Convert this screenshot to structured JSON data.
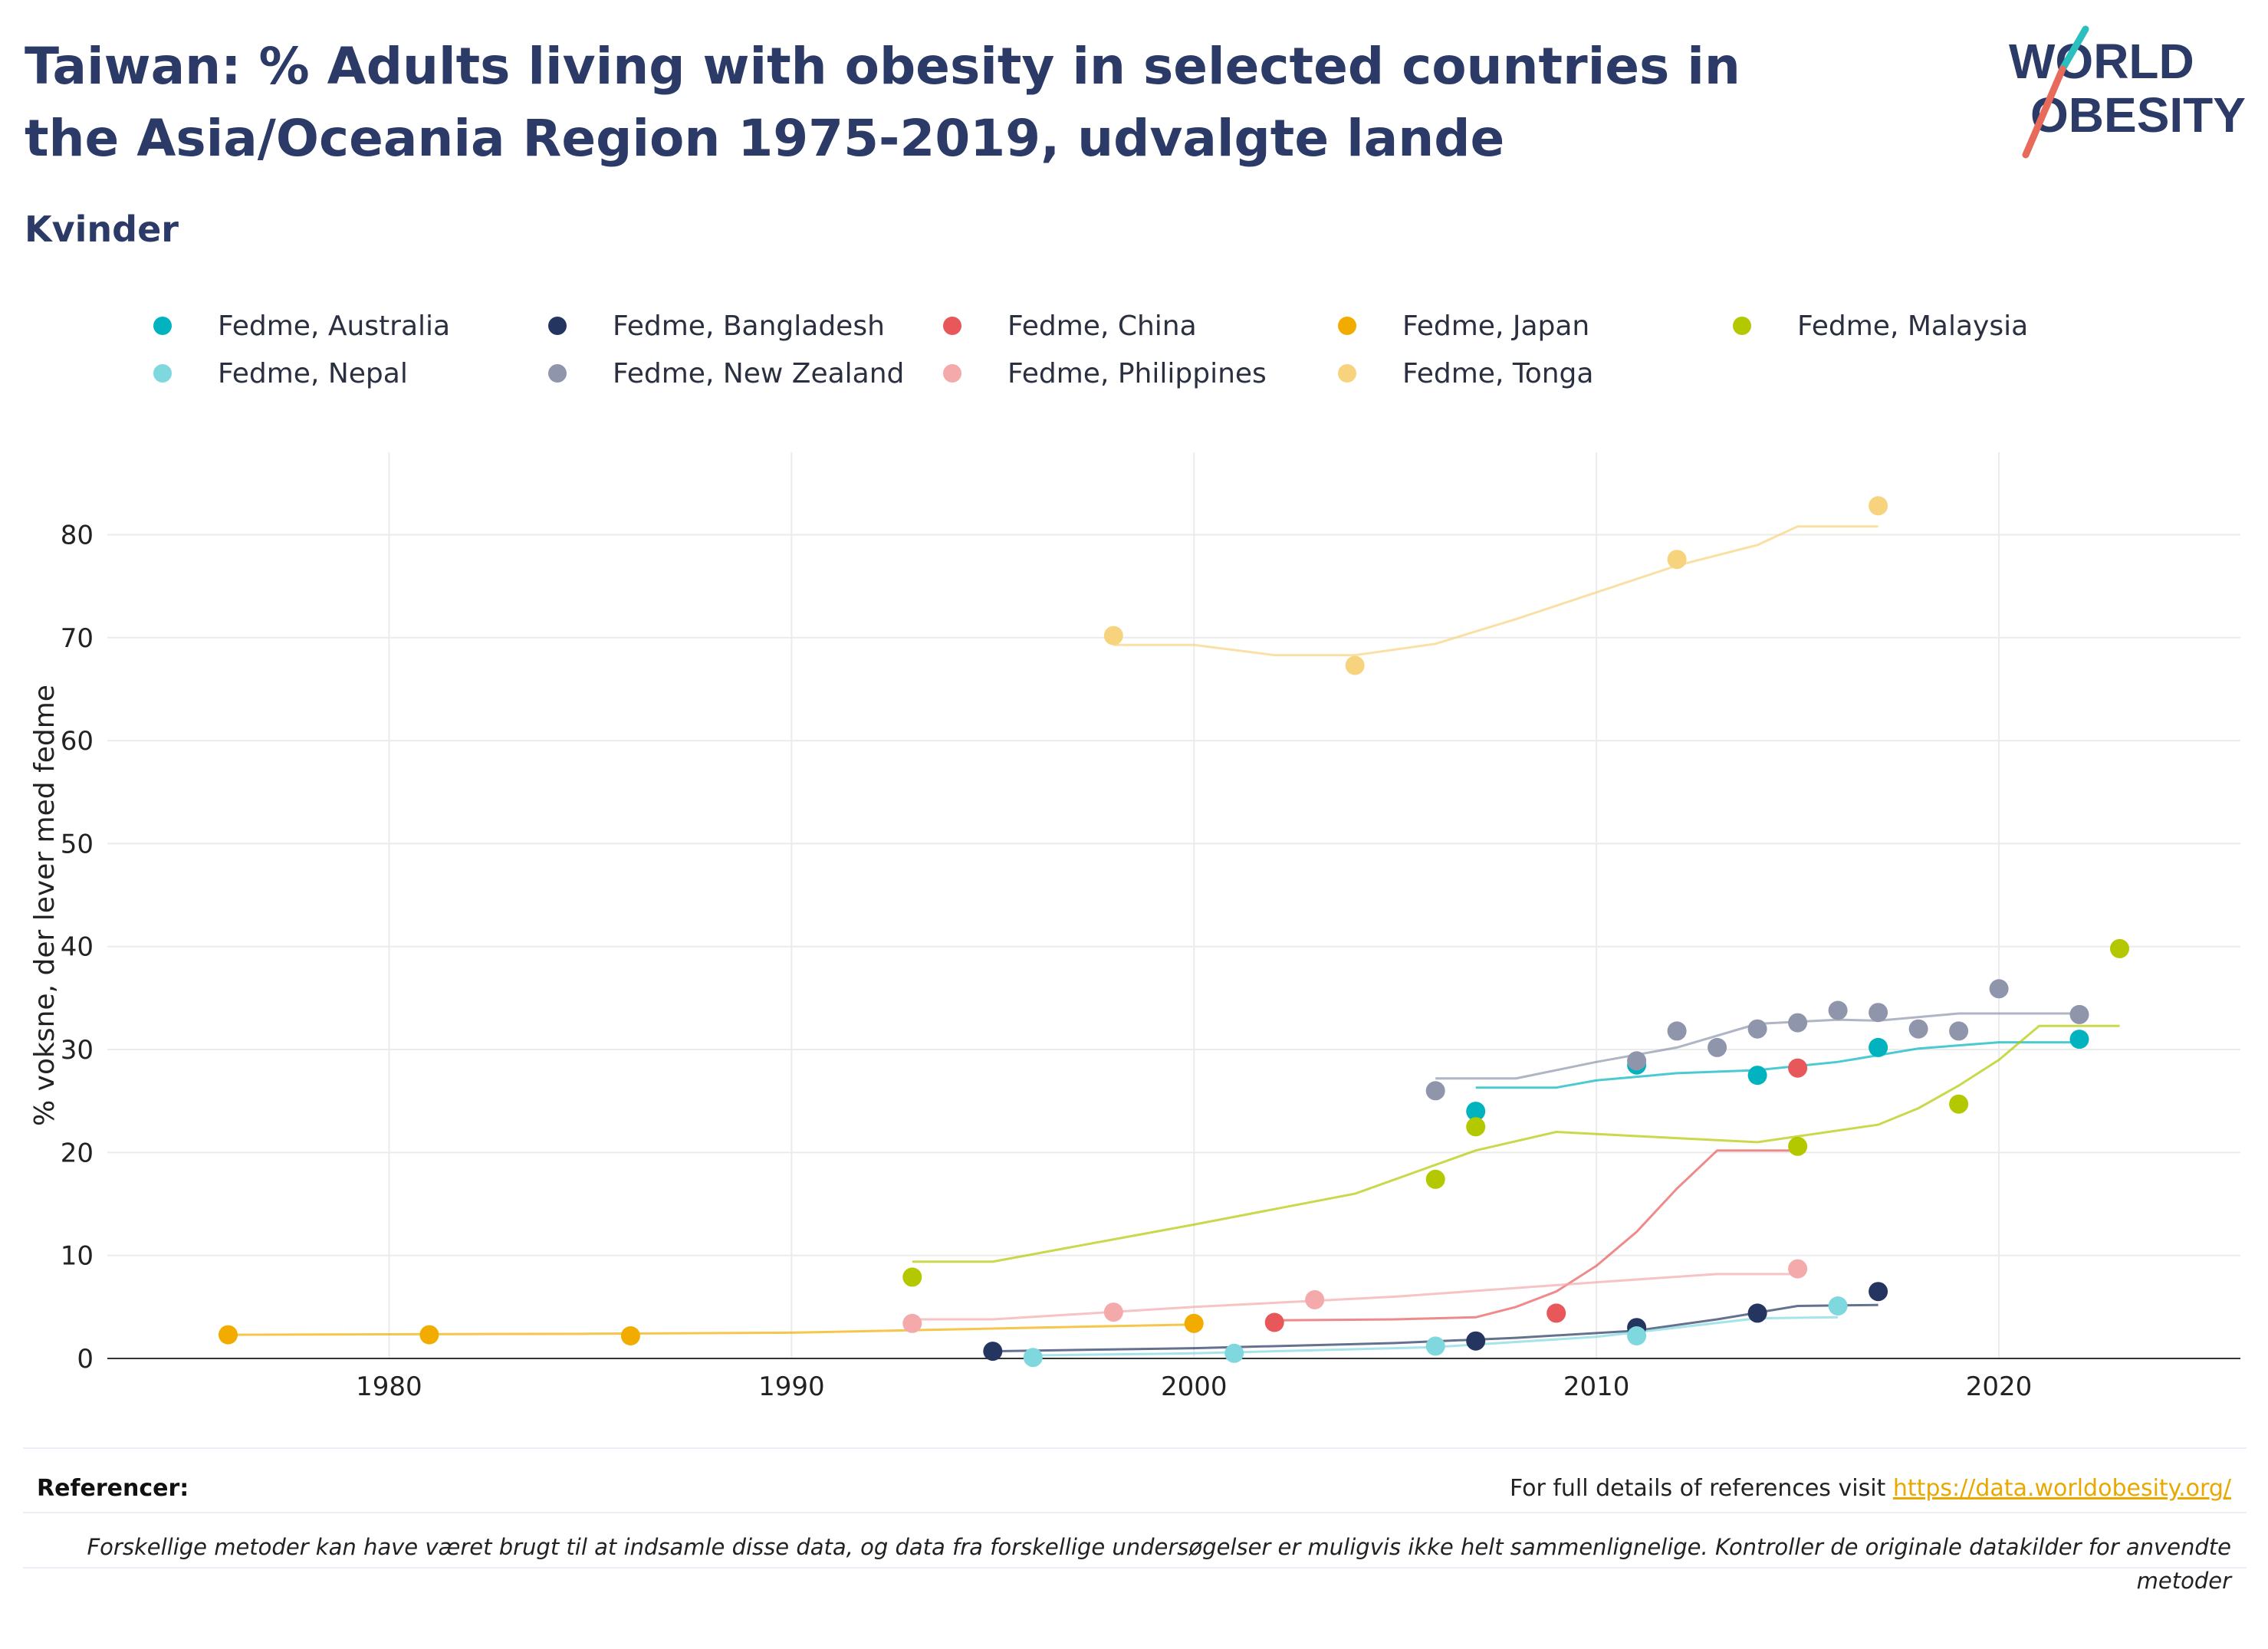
{
  "header": {
    "title": "Taiwan: % Adults living with obesity in selected countries in the Asia/Oceania Region 1975-2019, udvalgte lande",
    "subtitle": "Kvinder",
    "logo_line1": "WORLD",
    "logo_line2": "OBESITY"
  },
  "legend": [
    {
      "label": "Fedme, Australia",
      "color": "#00b3bf"
    },
    {
      "label": "Fedme, Bangladesh",
      "color": "#243560"
    },
    {
      "label": "Fedme, China",
      "color": "#e8585a"
    },
    {
      "label": "Fedme, Japan",
      "color": "#f2ac00"
    },
    {
      "label": "Fedme, Malaysia",
      "color": "#b4c800"
    },
    {
      "label": "Fedme, Nepal",
      "color": "#7fd8de"
    },
    {
      "label": "Fedme, New Zealand",
      "color": "#8f96ab"
    },
    {
      "label": "Fedme, Philippines",
      "color": "#f4aaab"
    },
    {
      "label": "Fedme, Tonga",
      "color": "#f8d37e"
    }
  ],
  "chart_data": {
    "type": "scatter",
    "ylabel": "% voksne, der lever med fedme",
    "xlabel": "",
    "xlim": [
      1973,
      2026
    ],
    "ylim": [
      0,
      88
    ],
    "x_ticks": [
      1980,
      1990,
      2000,
      2010,
      2020
    ],
    "y_ticks": [
      0,
      10,
      20,
      30,
      40,
      50,
      60,
      70,
      80
    ],
    "grid": true,
    "legend_position": "top",
    "series": [
      {
        "name": "Fedme, Australia",
        "color": "#00b3bf",
        "points": [
          [
            2007,
            24.0
          ],
          [
            2011,
            28.5
          ],
          [
            2014,
            27.5
          ],
          [
            2017,
            30.2
          ],
          [
            2022,
            31.0
          ]
        ],
        "trend": [
          [
            2007,
            26.3
          ],
          [
            2009,
            26.3
          ],
          [
            2010,
            27.0
          ],
          [
            2012,
            27.7
          ],
          [
            2014,
            28.0
          ],
          [
            2016,
            28.8
          ],
          [
            2018,
            30.1
          ],
          [
            2020,
            30.7
          ],
          [
            2022,
            30.7
          ]
        ]
      },
      {
        "name": "Fedme, Bangladesh",
        "color": "#243560",
        "points": [
          [
            1995,
            0.7
          ],
          [
            2007,
            1.7
          ],
          [
            2011,
            3.0
          ],
          [
            2014,
            4.4
          ],
          [
            2017,
            6.5
          ]
        ],
        "trend": [
          [
            1995,
            0.7
          ],
          [
            2000,
            1.0
          ],
          [
            2005,
            1.5
          ],
          [
            2008,
            2.0
          ],
          [
            2011,
            2.7
          ],
          [
            2013,
            3.8
          ],
          [
            2015,
            5.1
          ],
          [
            2017,
            5.2
          ]
        ]
      },
      {
        "name": "Fedme, China",
        "color": "#e8585a",
        "points": [
          [
            2002,
            3.5
          ],
          [
            2009,
            4.4
          ],
          [
            2015,
            28.2
          ]
        ],
        "trend": [
          [
            2002,
            3.7
          ],
          [
            2005,
            3.8
          ],
          [
            2007,
            4.0
          ],
          [
            2008,
            5.0
          ],
          [
            2009,
            6.5
          ],
          [
            2010,
            9.0
          ],
          [
            2011,
            12.3
          ],
          [
            2012,
            16.5
          ],
          [
            2013,
            20.2
          ],
          [
            2015,
            20.2
          ]
        ]
      },
      {
        "name": "Fedme, Japan",
        "color": "#f2ac00",
        "points": [
          [
            1976,
            2.3
          ],
          [
            1981,
            2.3
          ],
          [
            1986,
            2.2
          ],
          [
            2000,
            3.4
          ]
        ],
        "trend": [
          [
            1976,
            2.3
          ],
          [
            1985,
            2.4
          ],
          [
            1990,
            2.5
          ],
          [
            1995,
            2.9
          ],
          [
            2000,
            3.3
          ]
        ]
      },
      {
        "name": "Fedme, Malaysia",
        "color": "#b4c800",
        "points": [
          [
            1993,
            7.9
          ],
          [
            2006,
            17.4
          ],
          [
            2007,
            22.5
          ],
          [
            2015,
            20.6
          ],
          [
            2019,
            24.7
          ],
          [
            2023,
            39.8
          ]
        ],
        "trend": [
          [
            1993,
            9.4
          ],
          [
            1995,
            9.4
          ],
          [
            2000,
            13.0
          ],
          [
            2004,
            16.0
          ],
          [
            2007,
            20.2
          ],
          [
            2009,
            22.0
          ],
          [
            2012,
            21.4
          ],
          [
            2014,
            21.0
          ],
          [
            2017,
            22.7
          ],
          [
            2018,
            24.3
          ],
          [
            2019,
            26.5
          ],
          [
            2020,
            29.0
          ],
          [
            2021,
            32.3
          ],
          [
            2023,
            32.3
          ]
        ]
      },
      {
        "name": "Fedme, Nepal",
        "color": "#7fd8de",
        "points": [
          [
            1996,
            0.1
          ],
          [
            2001,
            0.5
          ],
          [
            2006,
            1.2
          ],
          [
            2011,
            2.2
          ],
          [
            2016,
            5.1
          ]
        ],
        "trend": [
          [
            1996,
            0.3
          ],
          [
            2000,
            0.5
          ],
          [
            2006,
            1.1
          ],
          [
            2010,
            2.1
          ],
          [
            2014,
            3.9
          ],
          [
            2016,
            4.0
          ]
        ]
      },
      {
        "name": "Fedme, New Zealand",
        "color": "#8f96ab",
        "points": [
          [
            2006,
            26.0
          ],
          [
            2011,
            28.9
          ],
          [
            2012,
            31.8
          ],
          [
            2013,
            30.2
          ],
          [
            2014,
            32.0
          ],
          [
            2015,
            32.6
          ],
          [
            2016,
            33.8
          ],
          [
            2017,
            33.6
          ],
          [
            2018,
            32.0
          ],
          [
            2019,
            31.8
          ],
          [
            2020,
            35.9
          ],
          [
            2022,
            33.4
          ]
        ],
        "trend": [
          [
            2006,
            27.2
          ],
          [
            2008,
            27.2
          ],
          [
            2010,
            28.8
          ],
          [
            2012,
            30.2
          ],
          [
            2014,
            32.5
          ],
          [
            2016,
            32.9
          ],
          [
            2017,
            32.8
          ],
          [
            2019,
            33.5
          ],
          [
            2022,
            33.5
          ]
        ]
      },
      {
        "name": "Fedme, Philippines",
        "color": "#f4aaab",
        "points": [
          [
            1993,
            3.4
          ],
          [
            1998,
            4.5
          ],
          [
            2003,
            5.7
          ],
          [
            2015,
            8.7
          ]
        ],
        "trend": [
          [
            1993,
            3.8
          ],
          [
            1995,
            3.8
          ],
          [
            2000,
            5.0
          ],
          [
            2005,
            6.0
          ],
          [
            2010,
            7.4
          ],
          [
            2013,
            8.2
          ],
          [
            2015,
            8.2
          ]
        ]
      },
      {
        "name": "Fedme, Tonga",
        "color": "#f8d37e",
        "points": [
          [
            1998,
            70.2
          ],
          [
            2004,
            67.3
          ],
          [
            2012,
            77.6
          ],
          [
            2017,
            82.8
          ]
        ],
        "trend": [
          [
            1998,
            69.3
          ],
          [
            2000,
            69.3
          ],
          [
            2002,
            68.3
          ],
          [
            2004,
            68.3
          ],
          [
            2006,
            69.4
          ],
          [
            2008,
            71.8
          ],
          [
            2010,
            74.4
          ],
          [
            2012,
            77.0
          ],
          [
            2014,
            79.0
          ],
          [
            2015,
            80.8
          ],
          [
            2017,
            80.8
          ]
        ]
      }
    ]
  },
  "footer": {
    "references_label": "Referencer:",
    "references_text": "For full details of references visit ",
    "references_link": "https://data.worldobesity.org/",
    "note": "Forskellige metoder kan have været brugt til at indsamle disse data, og data fra forskellige undersøgelser er muligvis ikke helt sammenlignelige. Kontroller de originale datakilder for anvendte metoder"
  }
}
